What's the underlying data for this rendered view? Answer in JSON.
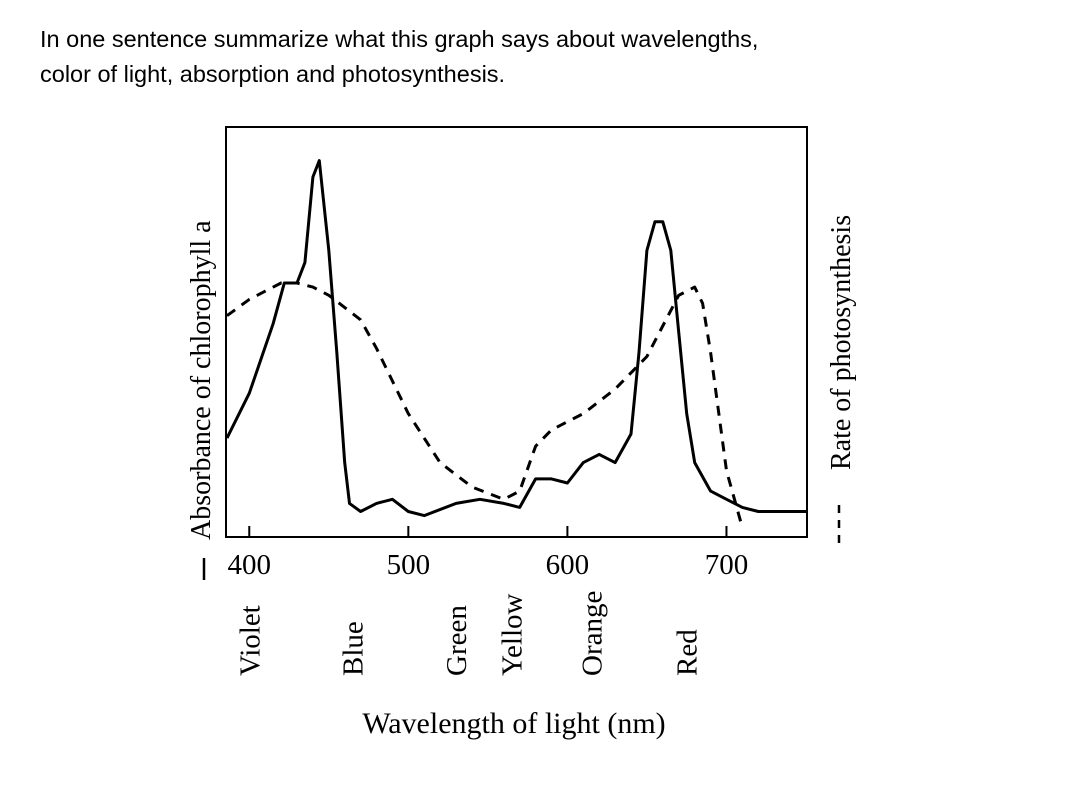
{
  "prompt": {
    "line1": "In one sentence summarize what this graph says about wavelengths,",
    "line2": "color of light, absorption and photosynthesis."
  },
  "chart_data": {
    "type": "line",
    "title": "",
    "xlabel": "Wavelength of light (nm)",
    "ylabel_left": "Absorbance of chlorophyll a",
    "ylabel_right": "Rate of photosynthesis",
    "xlim": [
      386,
      750
    ],
    "ylim": [
      0,
      1
    ],
    "xticks": [
      400,
      500,
      600,
      700
    ],
    "color_labels": [
      {
        "label": "Violet",
        "x": 400
      },
      {
        "label": "Blue",
        "x": 465
      },
      {
        "label": "Green",
        "x": 530
      },
      {
        "label": "Yellow",
        "x": 565
      },
      {
        "label": "Orange",
        "x": 615
      },
      {
        "label": "Red",
        "x": 675
      }
    ],
    "series": [
      {
        "name": "Absorbance of chlorophyll a",
        "style": "solid",
        "x": [
          386,
          400,
          415,
          422,
          430,
          435,
          440,
          444,
          450,
          455,
          460,
          463,
          470,
          480,
          490,
          500,
          510,
          530,
          545,
          560,
          570,
          580,
          590,
          600,
          610,
          620,
          630,
          640,
          645,
          650,
          655,
          660,
          665,
          670,
          675,
          680,
          690,
          700,
          710,
          720,
          750
        ],
        "y": [
          0.24,
          0.35,
          0.52,
          0.62,
          0.62,
          0.67,
          0.88,
          0.92,
          0.7,
          0.45,
          0.18,
          0.08,
          0.06,
          0.08,
          0.09,
          0.06,
          0.05,
          0.08,
          0.09,
          0.08,
          0.07,
          0.14,
          0.14,
          0.13,
          0.18,
          0.2,
          0.18,
          0.25,
          0.45,
          0.7,
          0.77,
          0.77,
          0.7,
          0.5,
          0.3,
          0.18,
          0.11,
          0.09,
          0.07,
          0.06,
          0.06
        ]
      },
      {
        "name": "Rate of photosynthesis",
        "style": "dashed",
        "x": [
          386,
          400,
          420,
          430,
          440,
          450,
          470,
          480,
          500,
          520,
          540,
          560,
          570,
          580,
          590,
          610,
          630,
          650,
          670,
          680,
          685,
          690,
          700,
          710
        ],
        "y": [
          0.54,
          0.58,
          0.62,
          0.62,
          0.61,
          0.59,
          0.53,
          0.46,
          0.3,
          0.18,
          0.12,
          0.09,
          0.11,
          0.22,
          0.26,
          0.3,
          0.36,
          0.44,
          0.59,
          0.61,
          0.57,
          0.45,
          0.16,
          0.02
        ]
      }
    ]
  }
}
